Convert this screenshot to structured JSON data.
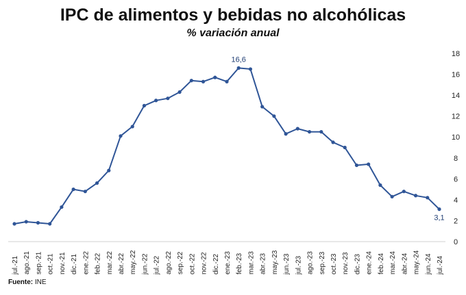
{
  "chart_data": {
    "type": "line",
    "title": "IPC de alimentos y bebidas no alcohólicas",
    "subtitle": "% variación anual",
    "categories": [
      "jul.-21",
      "ago.-21",
      "sep.-21",
      "oct.-21",
      "nov.-21",
      "dic.-21",
      "ene.-22",
      "feb.-22",
      "mar.-22",
      "abr.-22",
      "may.-22",
      "jun.-22",
      "jul.-22",
      "ago.-22",
      "sep.-22",
      "oct.-22",
      "nov.-22",
      "dic.-22",
      "ene.-23",
      "feb.-23",
      "mar.-23",
      "abr.-23",
      "may.-23",
      "jun.-23",
      "jul.-23",
      "ago.-23",
      "sep.-23",
      "oct.-23",
      "nov.-23",
      "dic.-23",
      "ene.-24",
      "feb.-24",
      "mar.-24",
      "abr.-24",
      "may.-24",
      "jun.-24",
      "jul.-24"
    ],
    "series": [
      {
        "values": [
          1.7,
          1.9,
          1.8,
          1.7,
          3.3,
          5.0,
          4.8,
          5.6,
          6.8,
          10.1,
          11.0,
          13.0,
          13.5,
          13.7,
          14.3,
          15.4,
          15.3,
          15.7,
          15.3,
          16.6,
          16.5,
          12.9,
          12.0,
          10.3,
          10.8,
          10.5,
          10.5,
          9.5,
          9.0,
          7.3,
          7.4,
          5.4,
          4.3,
          4.8,
          4.4,
          4.2,
          3.1
        ]
      }
    ],
    "ylim": [
      0,
      18
    ],
    "yticks": [
      0,
      2,
      4,
      6,
      8,
      10,
      12,
      14,
      16,
      18
    ],
    "y_axis_position": "right",
    "grid": false,
    "line_color": "#2f5597",
    "annotations": [
      {
        "category": "feb.-23",
        "text": "16,6"
      },
      {
        "category": "jul.-24",
        "text": "3,1"
      }
    ]
  },
  "source": {
    "label": "Fuente:",
    "text": "INE"
  }
}
